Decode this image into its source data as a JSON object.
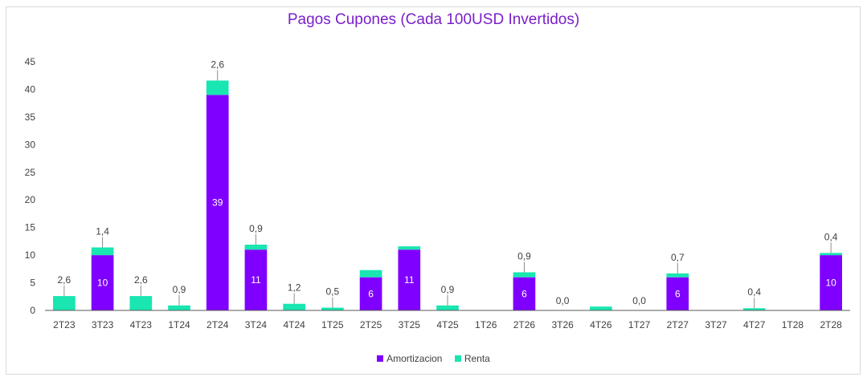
{
  "chart_data": {
    "type": "bar",
    "stacked": true,
    "title": "Pagos Cupones (Cada 100USD Invertidos)",
    "xlabel": "",
    "ylabel": "",
    "ylim": [
      0,
      45
    ],
    "yticks": [
      "0",
      "5",
      "10",
      "15",
      "20",
      "25",
      "30",
      "35",
      "40",
      "45"
    ],
    "categories": [
      "2T23",
      "3T23",
      "4T23",
      "1T24",
      "2T24",
      "3T24",
      "4T24",
      "1T25",
      "2T25",
      "3T25",
      "4T25",
      "1T26",
      "2T26",
      "3T26",
      "4T26",
      "1T27",
      "2T27",
      "3T27",
      "4T27",
      "1T28",
      "2T28"
    ],
    "series": [
      {
        "name": "Amortizacion",
        "color": "#7f00ff",
        "values": [
          0,
          10,
          0,
          0,
          39,
          11,
          0,
          0,
          6,
          11,
          0,
          0,
          6,
          0,
          0,
          0,
          6,
          0,
          0,
          0,
          10
        ]
      },
      {
        "name": "Renta",
        "color": "#19e6b0",
        "values": [
          2.6,
          1.4,
          2.6,
          0.9,
          2.6,
          0.9,
          1.2,
          0.5,
          1.3,
          0.6,
          0.9,
          0,
          0.9,
          0,
          0.7,
          0,
          0.7,
          0,
          0.4,
          0,
          0.4
        ]
      }
    ],
    "amort_labels": [
      "",
      "10",
      "",
      "",
      "39",
      "11",
      "",
      "",
      "6",
      "11",
      "",
      "",
      "6",
      "",
      "",
      "",
      "6",
      "",
      "",
      "",
      "10"
    ],
    "top_labels": [
      "2,6",
      "1,4",
      "2,6",
      "0,9",
      "2,6",
      "0,9",
      "1,2",
      "0,5",
      "",
      "",
      "0,9",
      "",
      "0,9",
      "0,0",
      "",
      "0,0",
      "0,7",
      "",
      "0,4",
      "",
      "0,4"
    ],
    "grid": false,
    "legend_position": "bottom"
  }
}
